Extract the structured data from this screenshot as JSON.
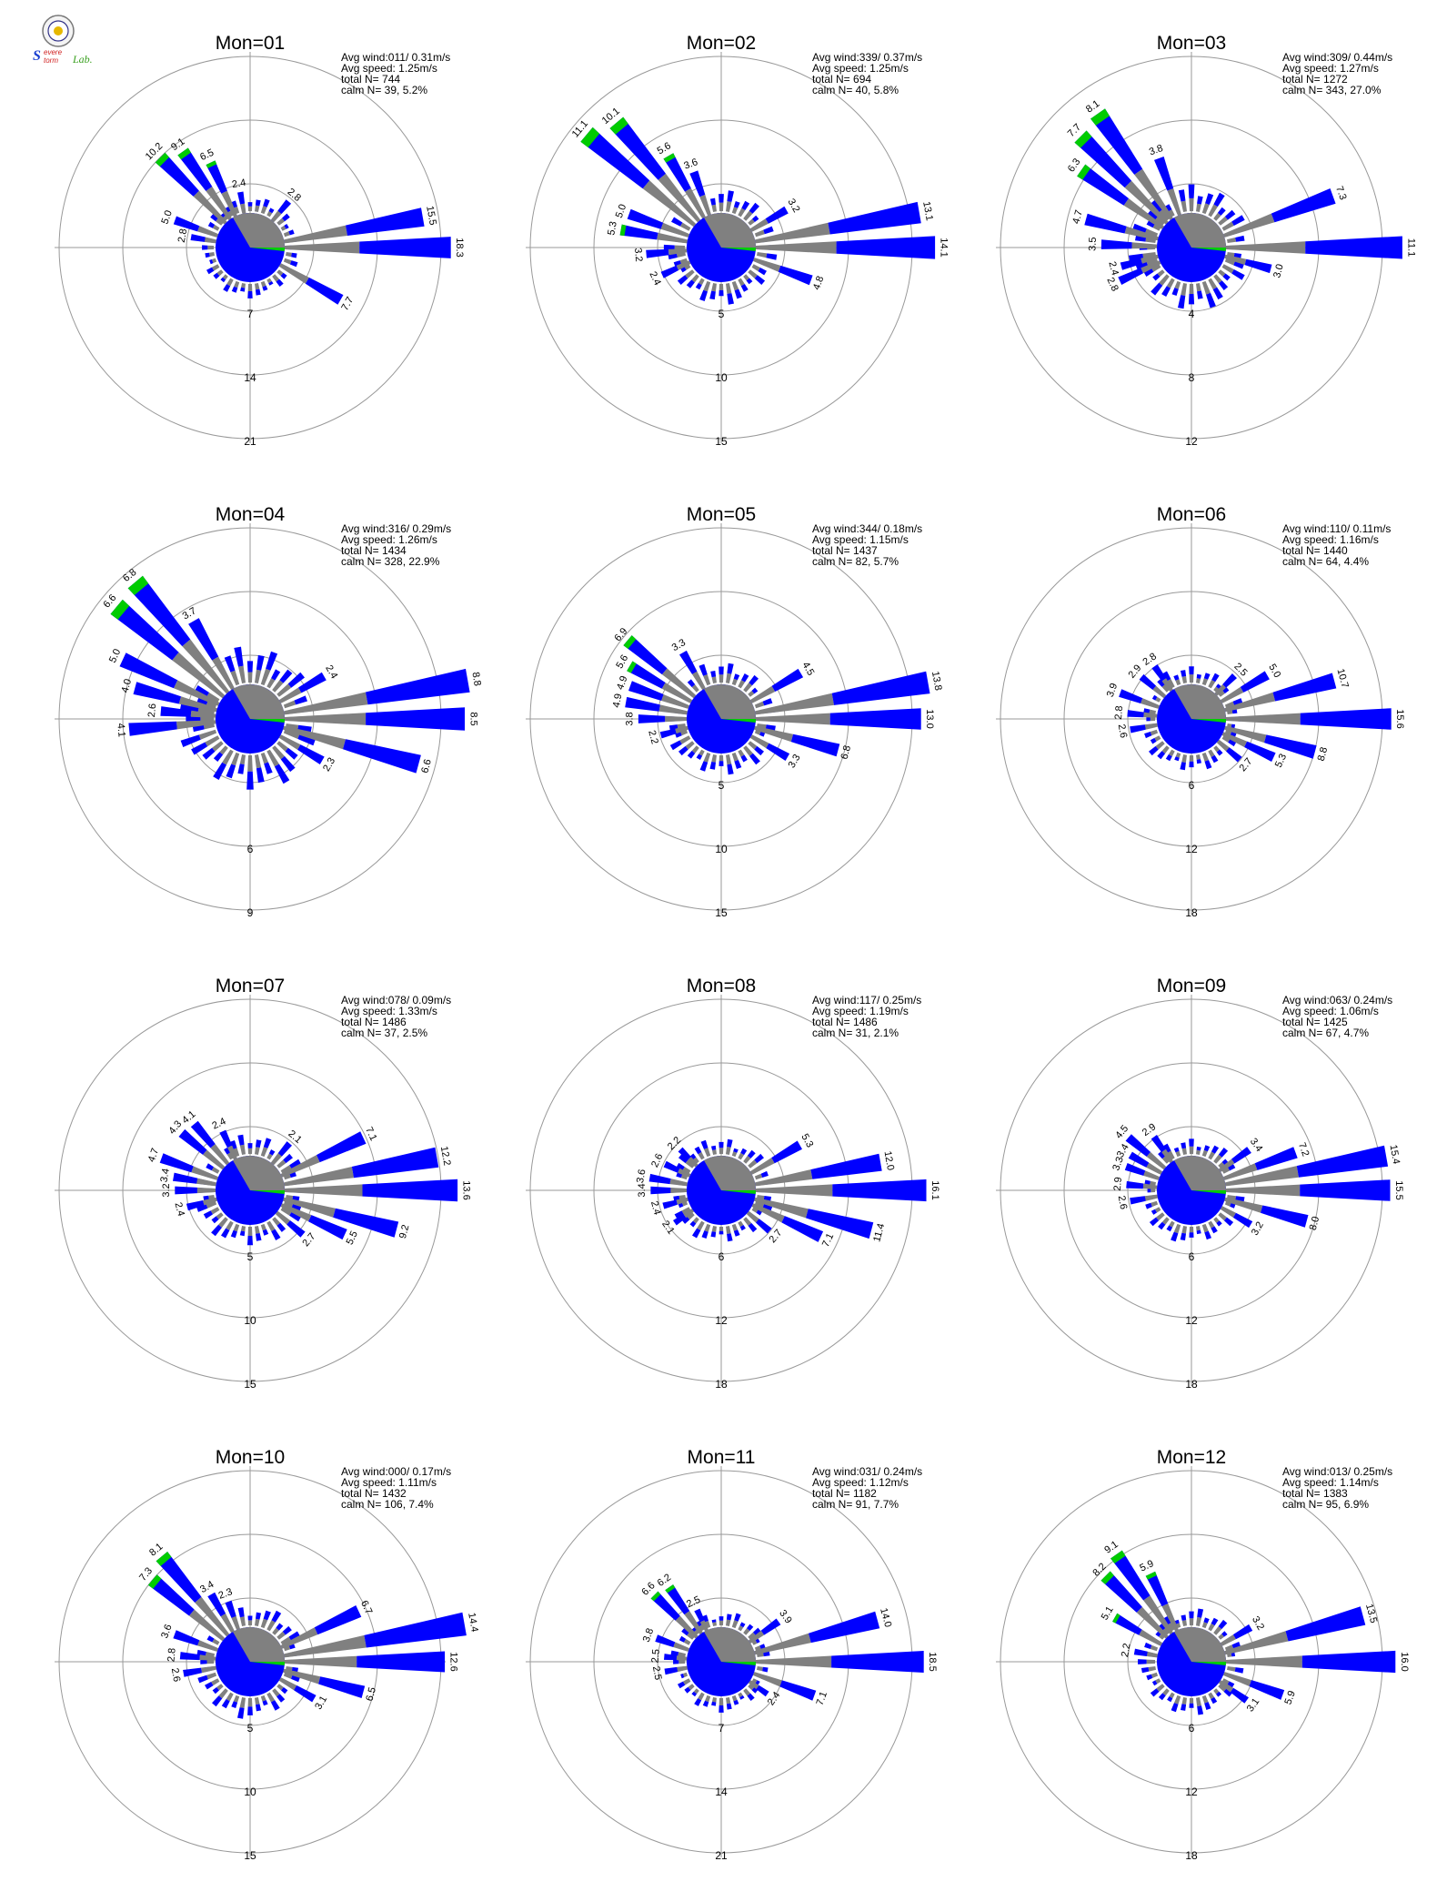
{
  "logo": {
    "text_s": "S",
    "text_severe": "evere",
    "text_storm": "torm",
    "text_lab": "Lab."
  },
  "colors": {
    "blue": "#0000FF",
    "green": "#00CC00",
    "gray": "#808080",
    "ring": "#999999",
    "text": "#000000"
  },
  "chart_data": [
    {
      "type": "windrose",
      "title": "Mon=01",
      "stats": [
        "Avg wind:011/ 0.31m/s",
        "Avg speed: 1.25m/s",
        "total N=       744",
        "calm N=    39,   5.2%"
      ],
      "ring_labels": [
        "7",
        "14",
        "21"
      ],
      "rmax": 21,
      "sector_count": 36,
      "petals": [
        {
          "dir": 0,
          "value": "18.3"
        },
        {
          "dir": 10,
          "value": "15.5"
        },
        {
          "dir": 330,
          "value": "7.7"
        },
        {
          "dir": 50,
          "value": "2.8"
        },
        {
          "dir": 135,
          "value": "10.2"
        },
        {
          "dir": 125,
          "value": "9.1"
        },
        {
          "dir": 115,
          "value": "6.5"
        },
        {
          "dir": 100,
          "value": "2.4"
        },
        {
          "dir": 160,
          "value": "5.0"
        },
        {
          "dir": 170,
          "value": "2.8"
        }
      ]
    },
    {
      "type": "windrose",
      "title": "Mon=02",
      "stats": [
        "Avg wind:339/ 0.37m/s",
        "Avg speed: 1.25m/s",
        "total N=       694",
        "calm N=    40,   5.8%"
      ],
      "ring_labels": [
        "5",
        "10",
        "15"
      ],
      "rmax": 15,
      "sector_count": 36,
      "petals": [
        {
          "dir": 0,
          "value": "14.1"
        },
        {
          "dir": 10,
          "value": "13.1"
        },
        {
          "dir": 30,
          "value": "3.2"
        },
        {
          "dir": 340,
          "value": "4.8"
        },
        {
          "dir": 140,
          "value": "11.1"
        },
        {
          "dir": 130,
          "value": "10.1"
        },
        {
          "dir": 120,
          "value": "5.6"
        },
        {
          "dir": 110,
          "value": "3.6"
        },
        {
          "dir": 160,
          "value": "5.0"
        },
        {
          "dir": 170,
          "value": "5.3"
        },
        {
          "dir": 185,
          "value": "3.2"
        },
        {
          "dir": 205,
          "value": "2.4"
        }
      ]
    },
    {
      "type": "windrose",
      "title": "Mon=03",
      "stats": [
        "Avg wind:309/ 0.44m/s",
        "Avg speed: 1.27m/s",
        "total N=      1272",
        "calm N=   343,  27.0%"
      ],
      "ring_labels": [
        "4",
        "8",
        "12"
      ],
      "rmax": 12,
      "sector_count": 36,
      "petals": [
        {
          "dir": 0,
          "value": "11.1"
        },
        {
          "dir": 20,
          "value": "7.3"
        },
        {
          "dir": 345,
          "value": "3.0"
        },
        {
          "dir": 125,
          "value": "8.1"
        },
        {
          "dir": 135,
          "value": "7.7"
        },
        {
          "dir": 145,
          "value": "6.3"
        },
        {
          "dir": 110,
          "value": "3.8"
        },
        {
          "dir": 165,
          "value": "4.7"
        },
        {
          "dir": 178,
          "value": "3.5"
        },
        {
          "dir": 195,
          "value": "2.4"
        },
        {
          "dir": 205,
          "value": "2.8"
        }
      ]
    },
    {
      "type": "windrose",
      "title": "Mon=04",
      "stats": [
        "Avg wind:316/ 0.29m/s",
        "Avg speed: 1.26m/s",
        "total N=      1434",
        "calm N=   328,  22.9%"
      ],
      "ring_labels": [
        "3",
        "6",
        "9"
      ],
      "rmax": 9,
      "sector_count": 36,
      "petals": [
        {
          "dir": 0,
          "value": "8.5"
        },
        {
          "dir": 10,
          "value": "8.8"
        },
        {
          "dir": 30,
          "value": "2.4"
        },
        {
          "dir": 345,
          "value": "6.6"
        },
        {
          "dir": 330,
          "value": "2.3"
        },
        {
          "dir": 130,
          "value": "6.8"
        },
        {
          "dir": 140,
          "value": "6.6"
        },
        {
          "dir": 120,
          "value": "3.7"
        },
        {
          "dir": 155,
          "value": "5.0"
        },
        {
          "dir": 165,
          "value": "4.0"
        },
        {
          "dir": 175,
          "value": "2.6"
        },
        {
          "dir": 185,
          "value": "4.1"
        }
      ]
    },
    {
      "type": "windrose",
      "title": "Mon=05",
      "stats": [
        "Avg wind:344/ 0.18m/s",
        "Avg speed: 1.15m/s",
        "total N=      1437",
        "calm N=    82,   5.7%"
      ],
      "ring_labels": [
        "5",
        "10",
        "15"
      ],
      "rmax": 15,
      "sector_count": 36,
      "petals": [
        {
          "dir": 0,
          "value": "13.0"
        },
        {
          "dir": 10,
          "value": "13.8"
        },
        {
          "dir": 30,
          "value": "4.5"
        },
        {
          "dir": 345,
          "value": "6.8"
        },
        {
          "dir": 330,
          "value": "3.3"
        },
        {
          "dir": 140,
          "value": "6.9"
        },
        {
          "dir": 120,
          "value": "3.3"
        },
        {
          "dir": 150,
          "value": "5.6"
        },
        {
          "dir": 160,
          "value": "4.9"
        },
        {
          "dir": 170,
          "value": "4.9"
        },
        {
          "dir": 180,
          "value": "3.8"
        },
        {
          "dir": 195,
          "value": "2.2"
        }
      ]
    },
    {
      "type": "windrose",
      "title": "Mon=06",
      "stats": [
        "Avg wind:110/ 0.11m/s",
        "Avg speed: 1.16m/s",
        "total N=      1440",
        "calm N=    64,   4.4%"
      ],
      "ring_labels": [
        "6",
        "12",
        "18"
      ],
      "rmax": 18,
      "sector_count": 36,
      "petals": [
        {
          "dir": 0,
          "value": "15.6"
        },
        {
          "dir": 15,
          "value": "10.7"
        },
        {
          "dir": 30,
          "value": "5.0"
        },
        {
          "dir": 45,
          "value": "2.5"
        },
        {
          "dir": 345,
          "value": "8.8"
        },
        {
          "dir": 335,
          "value": "5.3"
        },
        {
          "dir": 320,
          "value": "2.7"
        },
        {
          "dir": 125,
          "value": "2.8"
        },
        {
          "dir": 140,
          "value": "2.9"
        },
        {
          "dir": 160,
          "value": "3.9"
        },
        {
          "dir": 175,
          "value": "2.8"
        },
        {
          "dir": 190,
          "value": "2.6"
        }
      ]
    },
    {
      "type": "windrose",
      "title": "Mon=07",
      "stats": [
        "Avg wind:078/ 0.09m/s",
        "Avg speed: 1.33m/s",
        "total N=      1486",
        "calm N=    37,   2.5%"
      ],
      "ring_labels": [
        "5",
        "10",
        "15"
      ],
      "rmax": 15,
      "sector_count": 36,
      "petals": [
        {
          "dir": 0,
          "value": "13.6"
        },
        {
          "dir": 10,
          "value": "12.2"
        },
        {
          "dir": 25,
          "value": "7.1"
        },
        {
          "dir": 50,
          "value": "2.1"
        },
        {
          "dir": 345,
          "value": "9.2"
        },
        {
          "dir": 335,
          "value": "5.5"
        },
        {
          "dir": 320,
          "value": "2.7"
        },
        {
          "dir": 130,
          "value": "4.1"
        },
        {
          "dir": 115,
          "value": "2.4"
        },
        {
          "dir": 140,
          "value": "4.3"
        },
        {
          "dir": 160,
          "value": "4.7"
        },
        {
          "dir": 170,
          "value": "3.4"
        },
        {
          "dir": 180,
          "value": "3.2"
        },
        {
          "dir": 195,
          "value": "2.4"
        }
      ]
    },
    {
      "type": "windrose",
      "title": "Mon=08",
      "stats": [
        "Avg wind:117/ 0.25m/s",
        "Avg speed: 1.19m/s",
        "total N=      1486",
        "calm N=    31,   2.1%"
      ],
      "ring_labels": [
        "6",
        "12",
        "18"
      ],
      "rmax": 18,
      "sector_count": 36,
      "petals": [
        {
          "dir": 0,
          "value": "16.1"
        },
        {
          "dir": 10,
          "value": "12.0"
        },
        {
          "dir": 30,
          "value": "5.3"
        },
        {
          "dir": 345,
          "value": "11.4"
        },
        {
          "dir": 335,
          "value": "7.1"
        },
        {
          "dir": 320,
          "value": "2.7"
        },
        {
          "dir": 135,
          "value": "2.2"
        },
        {
          "dir": 155,
          "value": "2.6"
        },
        {
          "dir": 170,
          "value": "3.6"
        },
        {
          "dir": 180,
          "value": "3.4"
        },
        {
          "dir": 195,
          "value": "2.4"
        },
        {
          "dir": 215,
          "value": "2.1"
        }
      ]
    },
    {
      "type": "windrose",
      "title": "Mon=09",
      "stats": [
        "Avg wind:063/ 0.24m/s",
        "Avg speed: 1.06m/s",
        "total N=      1425",
        "calm N=    67,   4.7%"
      ],
      "ring_labels": [
        "6",
        "12",
        "18"
      ],
      "rmax": 18,
      "sector_count": 36,
      "petals": [
        {
          "dir": 0,
          "value": "15.5"
        },
        {
          "dir": 10,
          "value": "15.4"
        },
        {
          "dir": 20,
          "value": "7.2"
        },
        {
          "dir": 35,
          "value": "3.4"
        },
        {
          "dir": 345,
          "value": "8.0"
        },
        {
          "dir": 330,
          "value": "3.2"
        },
        {
          "dir": 140,
          "value": "4.5"
        },
        {
          "dir": 125,
          "value": "2.9"
        },
        {
          "dir": 150,
          "value": "3.4"
        },
        {
          "dir": 160,
          "value": "3.3"
        },
        {
          "dir": 175,
          "value": "2.9"
        },
        {
          "dir": 190,
          "value": "2.6"
        }
      ]
    },
    {
      "type": "windrose",
      "title": "Mon=10",
      "stats": [
        "Avg wind:000/ 0.17m/s",
        "Avg speed: 1.11m/s",
        "total N=      1432",
        "calm N=   106,   7.4%"
      ],
      "ring_labels": [
        "5",
        "10",
        "15"
      ],
      "rmax": 15,
      "sector_count": 36,
      "petals": [
        {
          "dir": 0,
          "value": "12.6"
        },
        {
          "dir": 10,
          "value": "14.4"
        },
        {
          "dir": 25,
          "value": "6.7"
        },
        {
          "dir": 345,
          "value": "6.5"
        },
        {
          "dir": 330,
          "value": "3.1"
        },
        {
          "dir": 130,
          "value": "8.1"
        },
        {
          "dir": 140,
          "value": "7.3"
        },
        {
          "dir": 120,
          "value": "3.4"
        },
        {
          "dir": 110,
          "value": "2.3"
        },
        {
          "dir": 160,
          "value": "3.6"
        },
        {
          "dir": 175,
          "value": "2.8"
        },
        {
          "dir": 190,
          "value": "2.6"
        }
      ]
    },
    {
      "type": "windrose",
      "title": "Mon=11",
      "stats": [
        "Avg wind:031/ 0.24m/s",
        "Avg speed: 1.12m/s",
        "total N=      1182",
        "calm N=    91,   7.7%"
      ],
      "ring_labels": [
        "7",
        "14",
        "21"
      ],
      "rmax": 21,
      "sector_count": 36,
      "petals": [
        {
          "dir": 0,
          "value": "18.5"
        },
        {
          "dir": 15,
          "value": "14.0"
        },
        {
          "dir": 35,
          "value": "3.9"
        },
        {
          "dir": 340,
          "value": "7.1"
        },
        {
          "dir": 325,
          "value": "2.4"
        },
        {
          "dir": 135,
          "value": "6.6"
        },
        {
          "dir": 125,
          "value": "6.2"
        },
        {
          "dir": 115,
          "value": "2.5"
        },
        {
          "dir": 160,
          "value": "3.8"
        },
        {
          "dir": 175,
          "value": "2.5"
        },
        {
          "dir": 190,
          "value": "2.5"
        }
      ]
    },
    {
      "type": "windrose",
      "title": "Mon=12",
      "stats": [
        "Avg wind:013/ 0.25m/s",
        "Avg speed: 1.14m/s",
        "total N=      1383",
        "calm N=    95,   6.9%"
      ],
      "ring_labels": [
        "6",
        "12",
        "18"
      ],
      "rmax": 18,
      "sector_count": 36,
      "petals": [
        {
          "dir": 0,
          "value": "16.0"
        },
        {
          "dir": 15,
          "value": "13.5"
        },
        {
          "dir": 30,
          "value": "3.2"
        },
        {
          "dir": 340,
          "value": "5.9"
        },
        {
          "dir": 325,
          "value": "3.1"
        },
        {
          "dir": 125,
          "value": "9.1"
        },
        {
          "dir": 135,
          "value": "8.2"
        },
        {
          "dir": 115,
          "value": "5.9"
        },
        {
          "dir": 150,
          "value": "5.1"
        },
        {
          "dir": 170,
          "value": "2.2"
        }
      ]
    }
  ]
}
